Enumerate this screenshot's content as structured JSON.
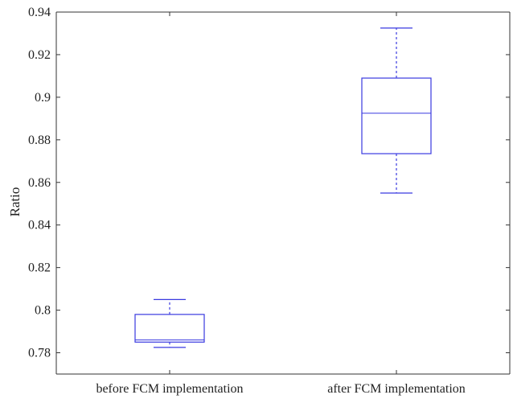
{
  "chart_data": {
    "type": "box",
    "title": "",
    "xlabel": "",
    "ylabel": "Ratio",
    "ylim": [
      0.77,
      0.94
    ],
    "yticks": [
      0.78,
      0.8,
      0.82,
      0.84,
      0.86,
      0.88,
      0.9,
      0.92,
      0.94
    ],
    "ytick_labels": [
      "0.78",
      "0.8",
      "0.82",
      "0.84",
      "0.86",
      "0.88",
      "0.9",
      "0.92",
      "0.94"
    ],
    "categories": [
      "before FCM implementation",
      "after FCM implementation"
    ],
    "boxes": [
      {
        "category": "before FCM implementation",
        "whisker_low": 0.7825,
        "q1": 0.785,
        "median": 0.786,
        "q3": 0.798,
        "whisker_high": 0.805
      },
      {
        "category": "after FCM implementation",
        "whisker_low": 0.855,
        "q1": 0.8735,
        "median": 0.8925,
        "q3": 0.909,
        "whisker_high": 0.9325
      }
    ],
    "grid": false,
    "legend": "none",
    "colors": {
      "box": "#3a3ae0",
      "axis": "#333333",
      "text": "#222222"
    }
  }
}
